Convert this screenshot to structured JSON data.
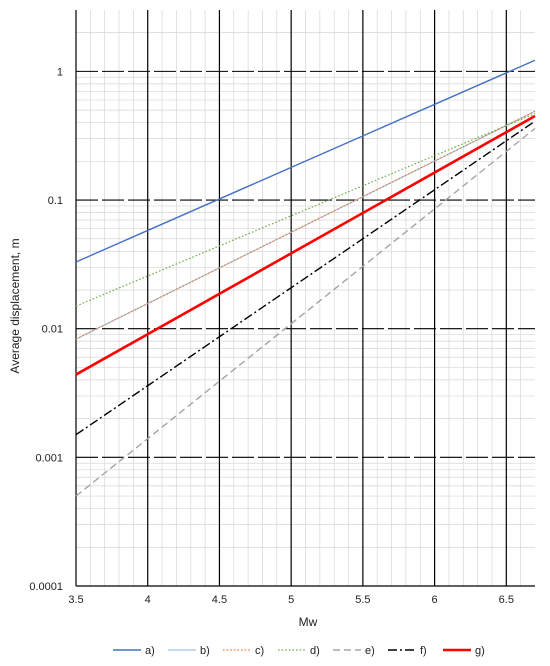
{
  "chart_data": {
    "type": "line",
    "title": "",
    "xlabel": "Mw",
    "ylabel": "Average displacement, m",
    "xlim": [
      3.5,
      6.7
    ],
    "ylim": [
      0.0001,
      3
    ],
    "yscale": "log",
    "x_ticks": [
      "3.5",
      "4",
      "4.5",
      "5",
      "5.5",
      "6",
      "6.5"
    ],
    "y_ticks": [
      "0.0001",
      "0.001",
      "0.01",
      "0.1",
      "1"
    ],
    "grid": true,
    "legend_position": "bottom",
    "series": [
      {
        "name": "a)",
        "color": "#4472C4",
        "style": "solid",
        "width": 1.4,
        "x": [
          3.5,
          6.7
        ],
        "y": [
          0.033,
          1.22
        ]
      },
      {
        "name": "b)",
        "color": "#9DC3E6",
        "style": "solid",
        "width": 1.2,
        "x": [
          3.5,
          6.7
        ],
        "y": [
          0.0083,
          0.49
        ]
      },
      {
        "name": "c)",
        "color": "#ED7D31",
        "style": "dotted",
        "width": 1.2,
        "x": [
          3.5,
          6.7
        ],
        "y": [
          0.0083,
          0.49
        ]
      },
      {
        "name": "d)",
        "color": "#70AD47",
        "style": "dotted",
        "width": 1.2,
        "x": [
          3.5,
          6.7
        ],
        "y": [
          0.015,
          0.47
        ]
      },
      {
        "name": "e)",
        "color": "#A5A5A5",
        "style": "dashed",
        "width": 1.4,
        "x": [
          3.5,
          6.7
        ],
        "y": [
          0.0005,
          0.36
        ]
      },
      {
        "name": "f)",
        "color": "#000000",
        "style": "dashdot",
        "width": 1.4,
        "x": [
          3.5,
          6.7
        ],
        "y": [
          0.0015,
          0.41
        ]
      },
      {
        "name": "g)",
        "color": "#FF0000",
        "style": "solid",
        "width": 2.6,
        "x": [
          3.5,
          6.7
        ],
        "y": [
          0.0044,
          0.45
        ]
      }
    ]
  }
}
